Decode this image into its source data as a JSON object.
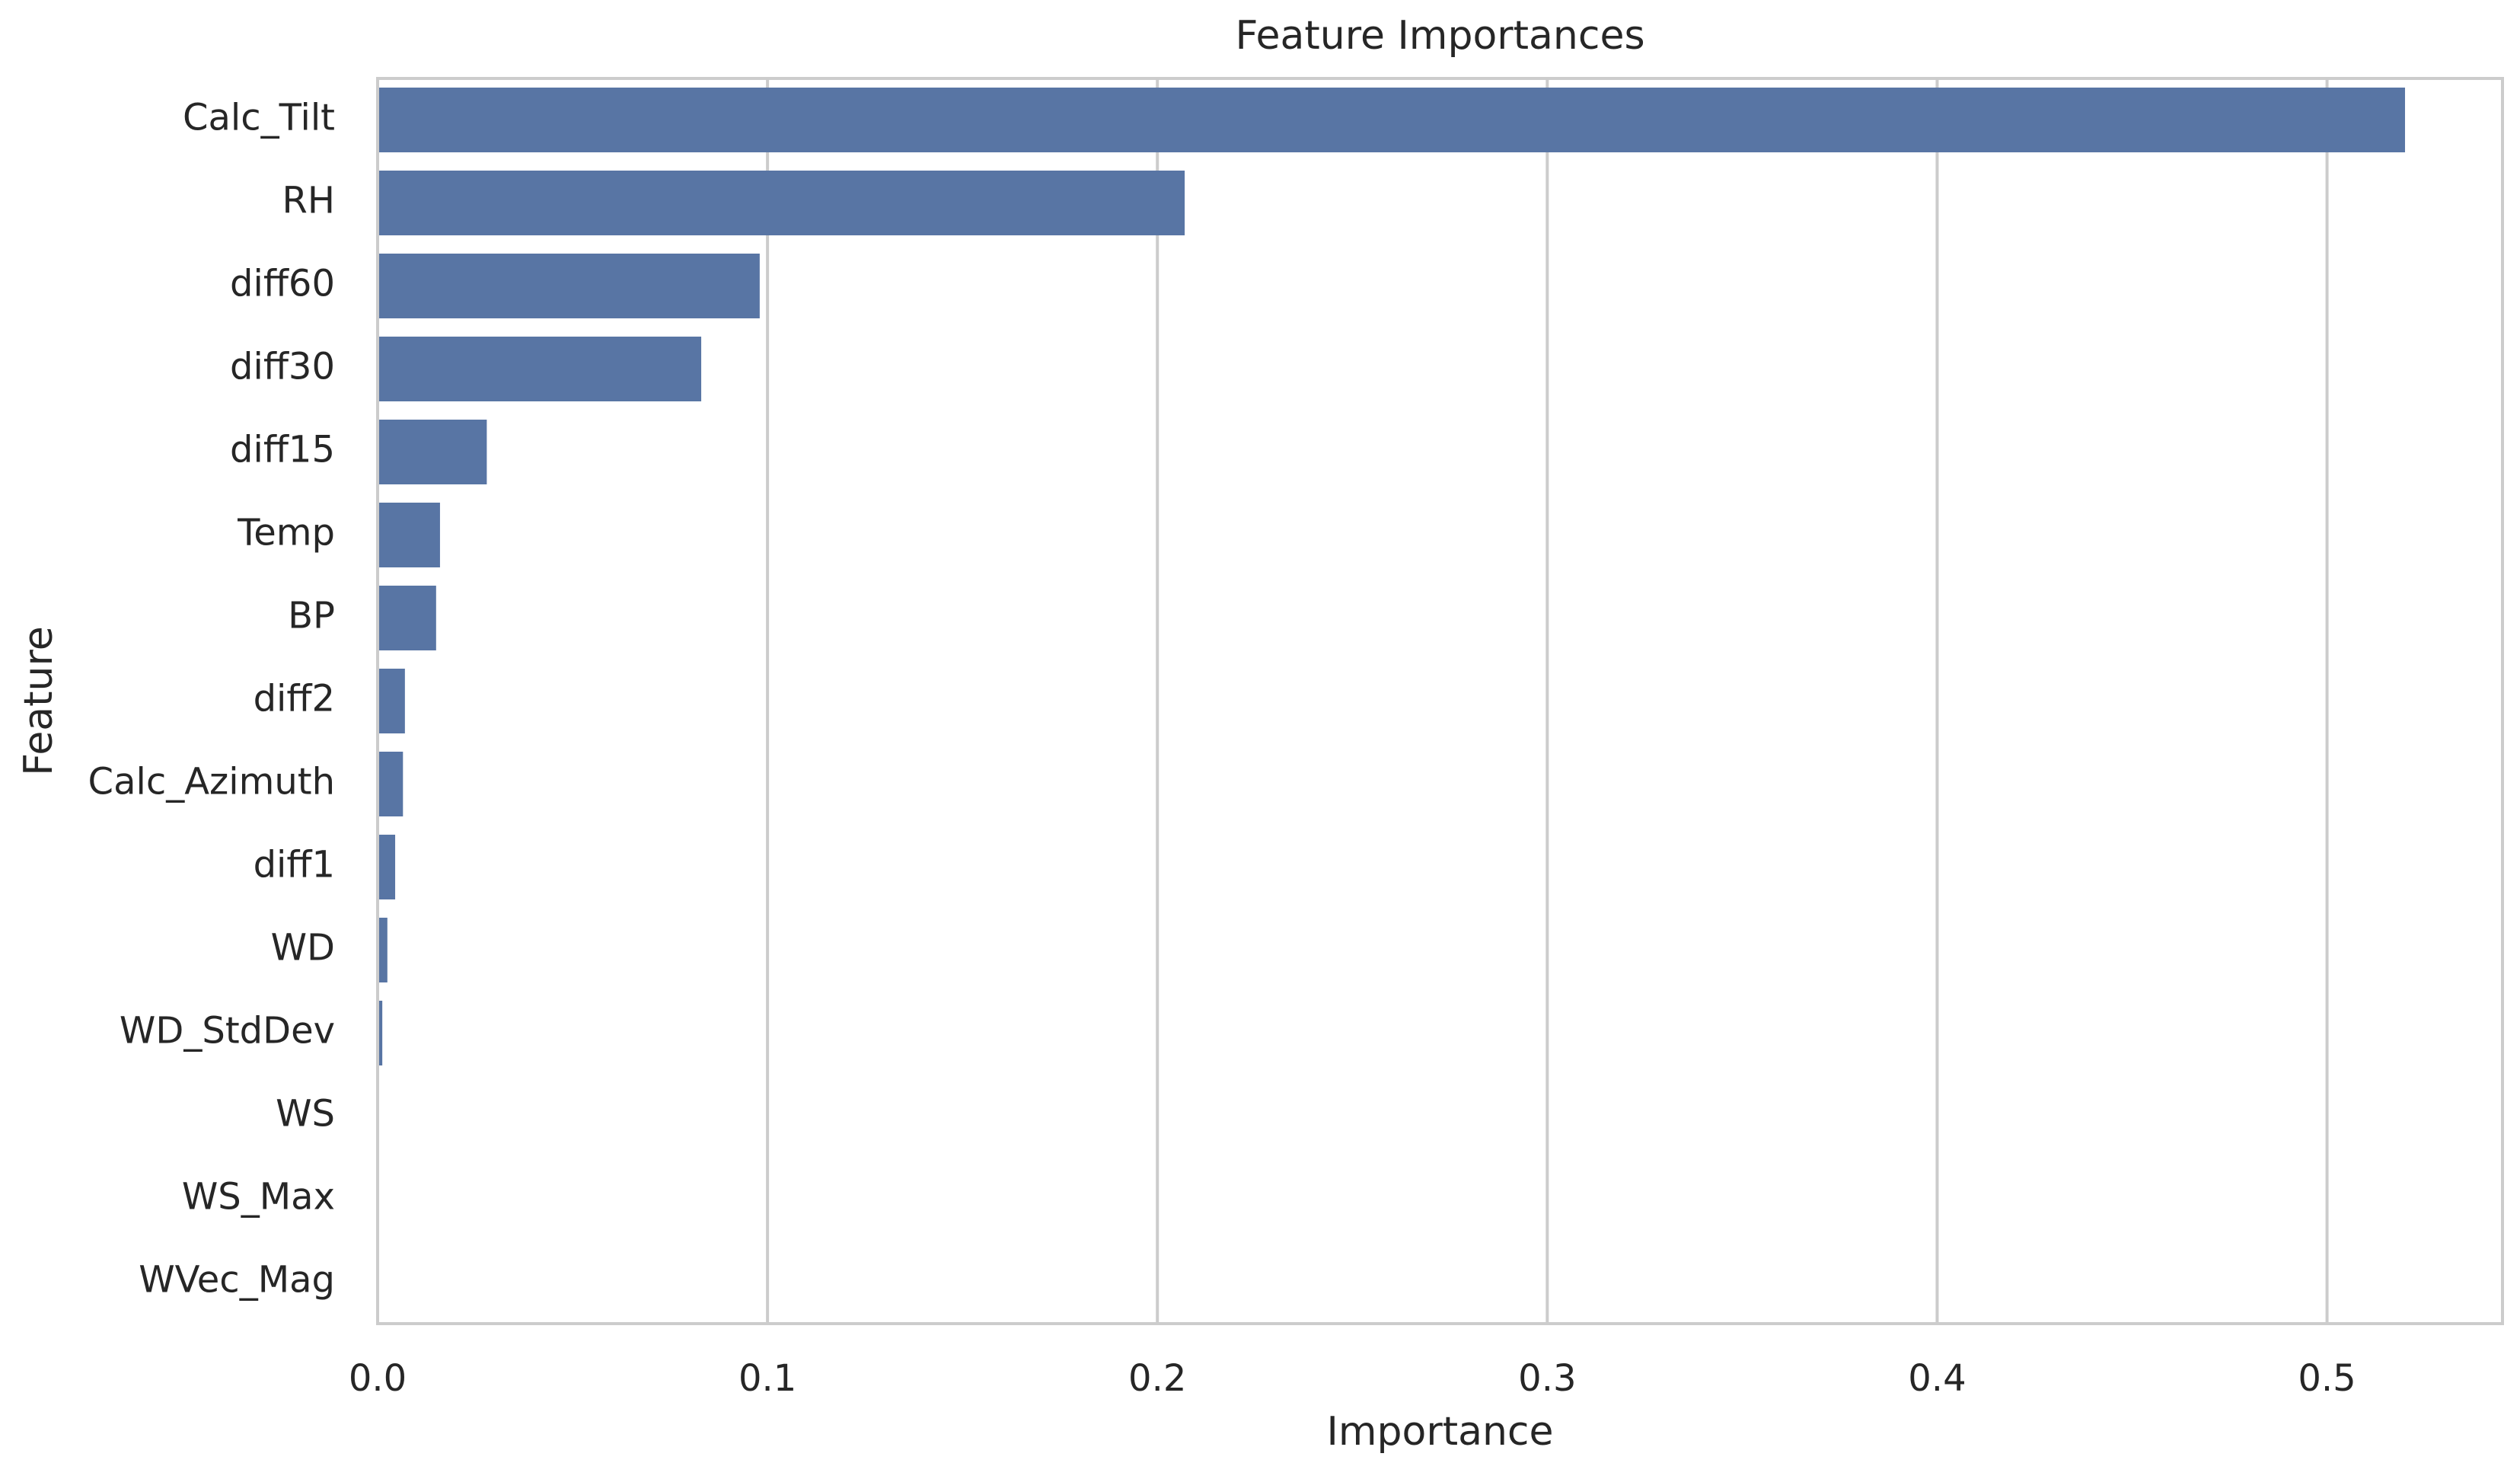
{
  "chart_data": {
    "type": "bar",
    "orientation": "horizontal",
    "title": "Feature Importances",
    "xlabel": "Importance",
    "ylabel": "Feature",
    "categories": [
      "Calc_Tilt",
      "RH",
      "diff60",
      "diff30",
      "diff15",
      "Temp",
      "BP",
      "diff2",
      "Calc_Azimuth",
      "diff1",
      "WD",
      "WD_StdDev",
      "WS",
      "WS_Max",
      "WVec_Mag"
    ],
    "values": [
      0.52,
      0.207,
      0.098,
      0.083,
      0.028,
      0.016,
      0.015,
      0.007,
      0.0065,
      0.0045,
      0.0025,
      0.0012,
      0.0,
      0.0,
      0.0
    ],
    "xlim": [
      0,
      0.545
    ],
    "xticks": [
      0.0,
      0.1,
      0.2,
      0.3,
      0.4,
      0.5
    ],
    "xtick_labels": [
      "0.0",
      "0.1",
      "0.2",
      "0.3",
      "0.4",
      "0.5"
    ],
    "grid": "x-axis vertical lines",
    "bar_color": "#5875a4",
    "grid_color": "#cccccc",
    "frame_color": "#cccccc"
  }
}
